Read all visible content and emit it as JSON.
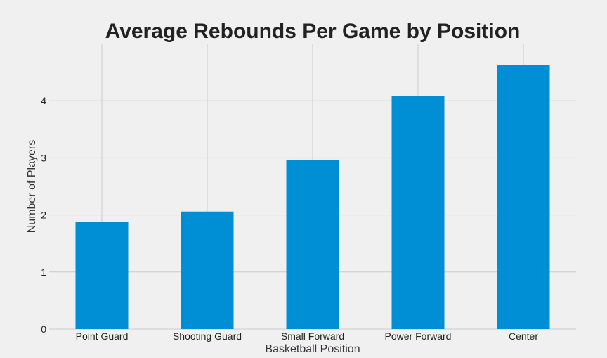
{
  "chart_data": {
    "type": "bar",
    "title": "Average Rebounds Per Game by Position",
    "xlabel": "Basketball Position",
    "ylabel": "Number of Players",
    "categories": [
      "Point Guard",
      "Shooting Guard",
      "Small Forward",
      "Power Forward",
      "Center"
    ],
    "values": [
      1.88,
      2.06,
      2.96,
      4.08,
      4.63
    ],
    "ylim": [
      0,
      5.0
    ],
    "yticks": [
      0,
      1,
      2,
      3,
      4
    ],
    "grid": true,
    "bar_color": "#008fd5",
    "background_color": "#f0f0f0",
    "grid_color": "#cbcbcb"
  }
}
